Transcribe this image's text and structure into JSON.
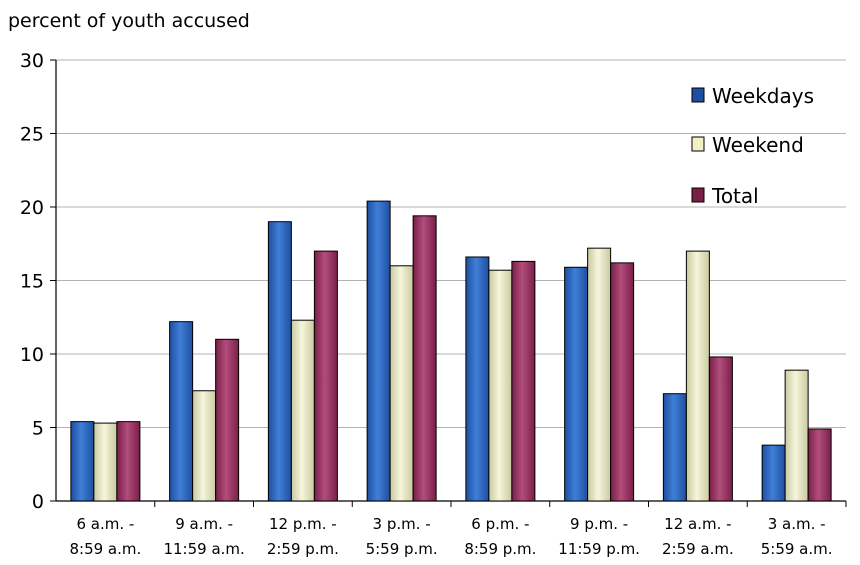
{
  "chart_data": {
    "type": "bar",
    "ylabel": "percent of youth accused",
    "ylim": [
      0,
      30
    ],
    "yticks": [
      0,
      5,
      10,
      15,
      20,
      25,
      30
    ],
    "grid": true,
    "legend_position": "top-right",
    "categories": [
      {
        "line1": "6 a.m. -",
        "line2": "8:59 a.m."
      },
      {
        "line1": "9 a.m. -",
        "line2": "11:59 a.m."
      },
      {
        "line1": "12 p.m. -",
        "line2": "2:59 p.m."
      },
      {
        "line1": "3 p.m. -",
        "line2": "5:59 p.m."
      },
      {
        "line1": "6 p.m. -",
        "line2": "8:59 p.m."
      },
      {
        "line1": "9 p.m. -",
        "line2": "11:59 p.m."
      },
      {
        "line1": "12 a.m. -",
        "line2": "2:59 a.m."
      },
      {
        "line1": "3 a.m. -",
        "line2": "5:59 a.m."
      }
    ],
    "series": [
      {
        "name": "Weekdays",
        "color": "#1f4fa0",
        "light": "#3f7fd8",
        "values": [
          5.4,
          12.2,
          19.0,
          20.4,
          16.6,
          15.9,
          7.3,
          3.8
        ]
      },
      {
        "name": "Weekend",
        "color": "#c9c9a0",
        "light": "#f6f6dc",
        "values": [
          5.3,
          7.5,
          12.3,
          16.0,
          15.7,
          17.2,
          17.0,
          8.9
        ]
      },
      {
        "name": "Total",
        "color": "#7a1f48",
        "light": "#b24d7c",
        "values": [
          5.4,
          11.0,
          17.0,
          19.4,
          16.3,
          16.2,
          9.8,
          4.9
        ]
      }
    ]
  }
}
